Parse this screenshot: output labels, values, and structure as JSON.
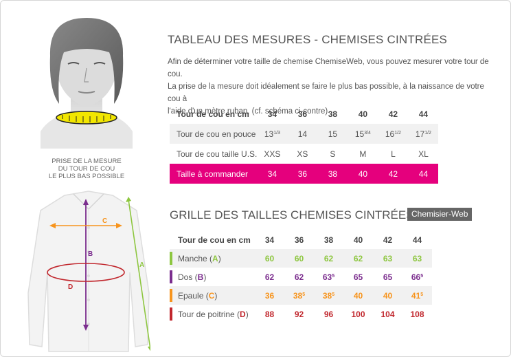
{
  "colors": {
    "pink": "#e5007d",
    "green": "#8dc63f",
    "purple": "#7b2d8e",
    "orange": "#f7941d",
    "red": "#c1272d",
    "tape": "#f2e600"
  },
  "illustration": {
    "caption_lines": [
      "PRISE DE LA MESURE",
      "DU TOUR DE COU",
      "LE PLUS BAS POSSIBLE"
    ],
    "shirt_labels": {
      "a": "A",
      "b": "B",
      "c": "C",
      "d": "D"
    }
  },
  "section1": {
    "title": "TABLEAU DES MESURES - CHEMISES CINTRÉES",
    "intro_lines": [
      "Afin de déterminer votre taille de chemise ChemiseWeb, vous pouvez mesurer votre tour de cou.",
      "La prise de la mesure doit idéalement se faire le plus bas possible, à la naissance de votre cou à",
      "l'aide d'un mètre ruban. (cf. schéma ci-contre)"
    ],
    "header_label": "Tour de cou en cm",
    "sizes": [
      "34",
      "36",
      "38",
      "40",
      "42",
      "44"
    ],
    "rows": [
      {
        "label": "Tour de cou en pouce",
        "cells": [
          {
            "main": "13",
            "sup": "1/3"
          },
          {
            "main": "14",
            "sup": ""
          },
          {
            "main": "15",
            "sup": ""
          },
          {
            "main": "15",
            "sup": "3/4"
          },
          {
            "main": "16",
            "sup": "1/2"
          },
          {
            "main": "17",
            "sup": "1/2"
          }
        ]
      },
      {
        "label": "Tour de cou taille  U.S.",
        "cells": [
          {
            "main": "XXS",
            "sup": ""
          },
          {
            "main": "XS",
            "sup": ""
          },
          {
            "main": "S",
            "sup": ""
          },
          {
            "main": "M",
            "sup": ""
          },
          {
            "main": "L",
            "sup": ""
          },
          {
            "main": "XL",
            "sup": ""
          }
        ]
      },
      {
        "label": "Taille à commander",
        "cells": [
          {
            "main": "34",
            "sup": ""
          },
          {
            "main": "36",
            "sup": ""
          },
          {
            "main": "38",
            "sup": ""
          },
          {
            "main": "40",
            "sup": ""
          },
          {
            "main": "42",
            "sup": ""
          },
          {
            "main": "44",
            "sup": ""
          }
        ]
      }
    ]
  },
  "section2": {
    "title": "GRILLE DES TAILLES CHEMISES CINTRÉES",
    "brand": "Chemisier-Web",
    "header_label": "Tour de cou en cm",
    "sizes": [
      "34",
      "36",
      "38",
      "40",
      "42",
      "44"
    ],
    "rows": [
      {
        "label": "Manche (",
        "letter": "A",
        "label_end": ")",
        "color": "#8dc63f",
        "cells": [
          {
            "main": "60",
            "sup": ""
          },
          {
            "main": "60",
            "sup": ""
          },
          {
            "main": "62",
            "sup": ""
          },
          {
            "main": "62",
            "sup": ""
          },
          {
            "main": "63",
            "sup": ""
          },
          {
            "main": "63",
            "sup": ""
          }
        ]
      },
      {
        "label": "Dos (",
        "letter": "B",
        "label_end": ")",
        "color": "#7b2d8e",
        "cells": [
          {
            "main": "62",
            "sup": ""
          },
          {
            "main": "62",
            "sup": ""
          },
          {
            "main": "63",
            "sup": "5"
          },
          {
            "main": "65",
            "sup": ""
          },
          {
            "main": "65",
            "sup": ""
          },
          {
            "main": "66",
            "sup": "5"
          }
        ]
      },
      {
        "label": "Epaule (",
        "letter": "C",
        "label_end": ")",
        "color": "#f7941d",
        "cells": [
          {
            "main": "36",
            "sup": ""
          },
          {
            "main": "38",
            "sup": "5"
          },
          {
            "main": "38",
            "sup": "5"
          },
          {
            "main": "40",
            "sup": ""
          },
          {
            "main": "40",
            "sup": ""
          },
          {
            "main": "41",
            "sup": "5"
          }
        ]
      },
      {
        "label": "Tour de poitrine (",
        "letter": "D",
        "label_end": ")",
        "color": "#c1272d",
        "cells": [
          {
            "main": "88",
            "sup": ""
          },
          {
            "main": "92",
            "sup": ""
          },
          {
            "main": "96",
            "sup": ""
          },
          {
            "main": "100",
            "sup": ""
          },
          {
            "main": "104",
            "sup": ""
          },
          {
            "main": "108",
            "sup": ""
          }
        ]
      }
    ]
  }
}
